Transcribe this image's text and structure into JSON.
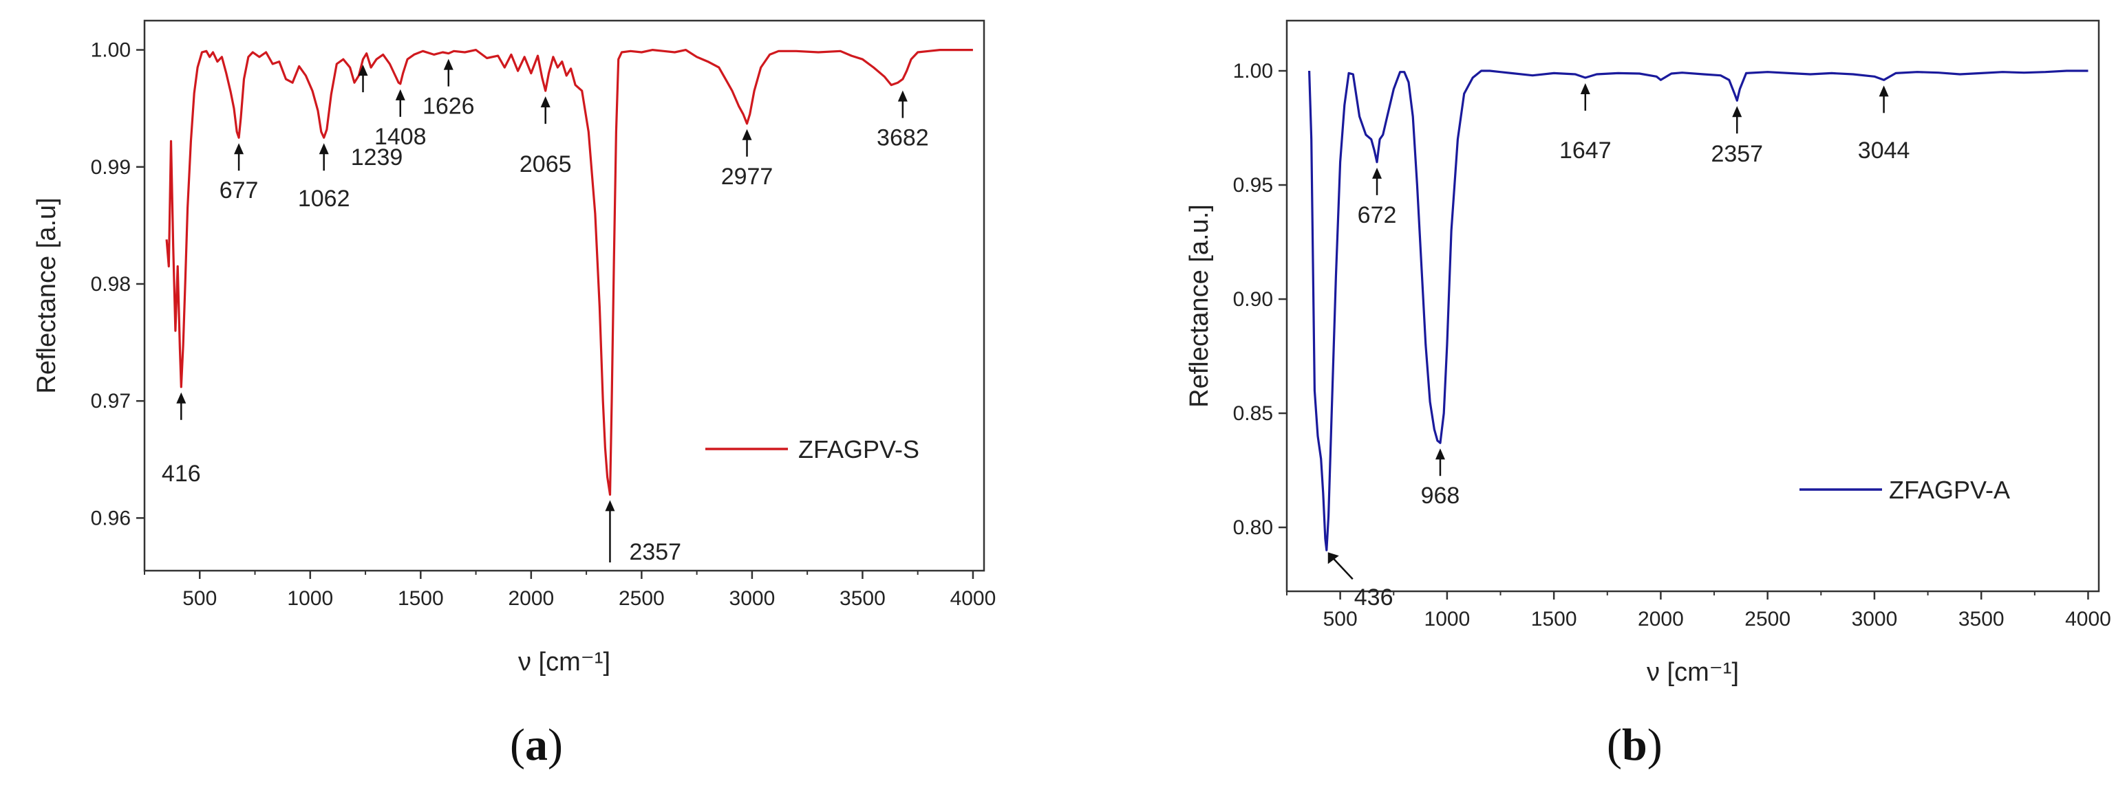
{
  "colors": {
    "series_a": "#d0191e",
    "series_b": "#1a1a9c",
    "axis": "#333333"
  },
  "chart_data": [
    {
      "type": "line",
      "panel_label": "a",
      "xlabel": "ν [cm⁻¹]",
      "ylabel": "Reflectance [a.u]",
      "xlim": [
        250,
        4050
      ],
      "ylim": [
        0.9555,
        1.0025
      ],
      "x_ticks": [
        500,
        1000,
        1500,
        2000,
        2500,
        3000,
        3500,
        4000
      ],
      "y_ticks": [
        0.96,
        0.97,
        0.98,
        0.99,
        1.0
      ],
      "y_tick_labels": [
        "0.96",
        "0.97",
        "0.98",
        "0.99",
        "1.00"
      ],
      "legend_position": "center-right",
      "series": [
        {
          "name": "ZFAGPV-S",
          "color": "#d0191e",
          "x": [
            350,
            360,
            370,
            380,
            390,
            400,
            410,
            416,
            425,
            435,
            445,
            460,
            475,
            490,
            510,
            530,
            545,
            560,
            580,
            600,
            620,
            640,
            655,
            668,
            677,
            686,
            700,
            720,
            740,
            770,
            800,
            830,
            860,
            890,
            920,
            950,
            980,
            1010,
            1035,
            1050,
            1062,
            1075,
            1095,
            1120,
            1150,
            1180,
            1200,
            1220,
            1239,
            1255,
            1275,
            1300,
            1330,
            1360,
            1385,
            1400,
            1408,
            1420,
            1440,
            1470,
            1510,
            1560,
            1600,
            1626,
            1650,
            1700,
            1750,
            1800,
            1850,
            1880,
            1910,
            1940,
            1970,
            2000,
            2030,
            2050,
            2065,
            2080,
            2100,
            2120,
            2140,
            2160,
            2180,
            2200,
            2230,
            2260,
            2290,
            2310,
            2325,
            2335,
            2345,
            2357,
            2365,
            2375,
            2385,
            2395,
            2410,
            2450,
            2500,
            2550,
            2600,
            2650,
            2700,
            2750,
            2800,
            2850,
            2880,
            2910,
            2940,
            2960,
            2977,
            2990,
            3010,
            3040,
            3080,
            3120,
            3200,
            3300,
            3400,
            3450,
            3500,
            3550,
            3600,
            3630,
            3660,
            3682,
            3700,
            3720,
            3750,
            3800,
            3850,
            3900,
            4000
          ],
          "values": [
            0.9838,
            0.9815,
            0.9922,
            0.9832,
            0.976,
            0.9815,
            0.9745,
            0.9712,
            0.9748,
            0.9805,
            0.9865,
            0.9922,
            0.9963,
            0.9985,
            0.9998,
            0.9999,
            0.9994,
            0.9998,
            0.999,
            0.9994,
            0.998,
            0.9964,
            0.995,
            0.993,
            0.9925,
            0.9942,
            0.9975,
            0.9994,
            0.9998,
            0.9994,
            0.9998,
            0.9988,
            0.999,
            0.9975,
            0.9972,
            0.9986,
            0.9978,
            0.9965,
            0.9948,
            0.993,
            0.9925,
            0.9932,
            0.9962,
            0.9988,
            0.9992,
            0.9985,
            0.9972,
            0.9978,
            0.9992,
            0.9997,
            0.9985,
            0.9992,
            0.9996,
            0.9988,
            0.9978,
            0.9972,
            0.9971,
            0.998,
            0.9992,
            0.9996,
            0.9999,
            0.9996,
            0.9998,
            0.9997,
            0.9999,
            0.9998,
            1.0,
            0.9993,
            0.9995,
            0.9985,
            0.9996,
            0.9982,
            0.9994,
            0.998,
            0.9995,
            0.9976,
            0.9965,
            0.998,
            0.9994,
            0.9985,
            0.999,
            0.9978,
            0.9984,
            0.997,
            0.9965,
            0.993,
            0.986,
            0.978,
            0.97,
            0.966,
            0.9635,
            0.962,
            0.97,
            0.982,
            0.993,
            0.9992,
            0.9998,
            0.9999,
            0.9998,
            1.0,
            0.9999,
            0.9998,
            1.0,
            0.9994,
            0.999,
            0.9985,
            0.9975,
            0.9965,
            0.9952,
            0.9945,
            0.9937,
            0.9945,
            0.9965,
            0.9985,
            0.9996,
            0.9999,
            0.9999,
            0.9998,
            0.9999,
            0.9995,
            0.9992,
            0.9985,
            0.9977,
            0.997,
            0.9972,
            0.9975,
            0.9982,
            0.9992,
            0.9998,
            0.9999,
            1.0,
            1.0,
            1.0
          ]
        }
      ],
      "annotations": [
        {
          "text": "416",
          "x": 416,
          "y": 0.9712
        },
        {
          "text": "677",
          "x": 677,
          "y": 0.9925
        },
        {
          "text": "1062",
          "x": 1062,
          "y": 0.9925
        },
        {
          "text": "1239",
          "x": 1239,
          "y": 0.9992
        },
        {
          "text": "1408",
          "x": 1408,
          "y": 0.9971
        },
        {
          "text": "1626",
          "x": 1626,
          "y": 0.9997
        },
        {
          "text": "2065",
          "x": 2065,
          "y": 0.9965
        },
        {
          "text": "2357",
          "x": 2357,
          "y": 0.962
        },
        {
          "text": "2977",
          "x": 2977,
          "y": 0.9937
        },
        {
          "text": "3682",
          "x": 3682,
          "y": 0.997
        }
      ]
    },
    {
      "type": "line",
      "panel_label": "b",
      "xlabel": "ν [cm⁻¹]",
      "ylabel": "Reflectance [a.u.]",
      "xlim": [
        250,
        4050
      ],
      "ylim": [
        0.772,
        1.022
      ],
      "x_ticks": [
        500,
        1000,
        1500,
        2000,
        2500,
        3000,
        3500,
        4000
      ],
      "y_ticks": [
        0.8,
        0.85,
        0.9,
        0.95,
        1.0
      ],
      "y_tick_labels": [
        "0.80",
        "0.85",
        "0.90",
        "0.95",
        "1.00"
      ],
      "legend_position": "bottom-right",
      "series": [
        {
          "name": "ZFAGPV-A",
          "color": "#1a1a9c",
          "x": [
            355,
            365,
            380,
            395,
            410,
            420,
            430,
            436,
            445,
            460,
            480,
            500,
            520,
            540,
            560,
            590,
            620,
            645,
            660,
            672,
            685,
            700,
            720,
            750,
            780,
            800,
            820,
            840,
            860,
            880,
            900,
            920,
            940,
            955,
            968,
            985,
            1000,
            1020,
            1050,
            1080,
            1120,
            1160,
            1200,
            1250,
            1300,
            1400,
            1500,
            1600,
            1647,
            1700,
            1800,
            1900,
            1980,
            2000,
            2050,
            2100,
            2200,
            2280,
            2320,
            2345,
            2357,
            2370,
            2400,
            2500,
            2600,
            2700,
            2800,
            2900,
            3000,
            3044,
            3100,
            3200,
            3300,
            3400,
            3500,
            3600,
            3700,
            3800,
            3900,
            4000
          ],
          "values": [
            1.0,
            0.97,
            0.86,
            0.84,
            0.83,
            0.815,
            0.795,
            0.79,
            0.805,
            0.85,
            0.91,
            0.96,
            0.985,
            0.999,
            0.9985,
            0.98,
            0.972,
            0.97,
            0.965,
            0.96,
            0.97,
            0.972,
            0.98,
            0.992,
            0.9995,
            0.9995,
            0.995,
            0.98,
            0.95,
            0.915,
            0.88,
            0.855,
            0.843,
            0.838,
            0.837,
            0.85,
            0.88,
            0.93,
            0.97,
            0.99,
            0.997,
            1.0,
            1.0,
            0.9995,
            0.999,
            0.998,
            0.999,
            0.9985,
            0.997,
            0.9985,
            0.999,
            0.9988,
            0.9975,
            0.996,
            0.9988,
            0.9992,
            0.9985,
            0.998,
            0.996,
            0.99,
            0.987,
            0.992,
            0.999,
            0.9995,
            0.999,
            0.9985,
            0.999,
            0.9985,
            0.9975,
            0.996,
            0.999,
            0.9995,
            0.9992,
            0.9985,
            0.999,
            0.9995,
            0.9992,
            0.9995,
            1.0,
            1.0
          ]
        }
      ],
      "annotations": [
        {
          "text": "436",
          "x": 436,
          "y": 0.79
        },
        {
          "text": "672",
          "x": 672,
          "y": 0.96
        },
        {
          "text": "968",
          "x": 968,
          "y": 0.837
        },
        {
          "text": "1647",
          "x": 1647,
          "y": 0.997
        },
        {
          "text": "2357",
          "x": 2357,
          "y": 0.987
        },
        {
          "text": "3044",
          "x": 3044,
          "y": 0.996
        }
      ]
    }
  ]
}
